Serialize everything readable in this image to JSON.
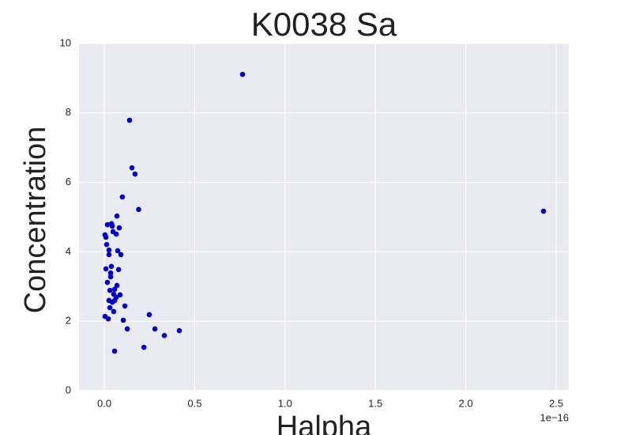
{
  "chart_data": {
    "type": "scatter",
    "title": "K0038 Sa",
    "xlabel": "Halpha",
    "ylabel": "Concentration",
    "x_offset_label": "1e−16",
    "color": "#0000cc",
    "background": "#eaeaf2",
    "grid": true,
    "xlim": [
      -0.14,
      2.57
    ],
    "ylim": [
      0,
      10
    ],
    "xticks": [
      {
        "value": 0,
        "label": "0.0"
      },
      {
        "value": 0.5,
        "label": "0.5"
      },
      {
        "value": 1,
        "label": "1.0"
      },
      {
        "value": 1.5,
        "label": "1.5"
      },
      {
        "value": 2,
        "label": "2.0"
      },
      {
        "value": 2.5,
        "label": "2.5"
      }
    ],
    "yticks": [
      0,
      2,
      4,
      6,
      8,
      10
    ],
    "x": [
      0.765,
      0.14,
      0.153,
      0.17,
      0.1,
      0.19,
      2.43,
      0.07,
      0.017,
      0.04,
      0.044,
      0.083,
      0.048,
      0.004,
      0.066,
      0.009,
      0.013,
      0.026,
      0.074,
      0.026,
      0.092,
      0.039,
      0.009,
      0.079,
      0.035,
      0.035,
      0.017,
      0.07,
      0.031,
      0.057,
      0.052,
      0.087,
      0.066,
      0.026,
      0.057,
      0.044,
      0.114,
      0.031,
      0.052,
      0.249,
      0.004,
      0.022,
      0.105,
      0.127,
      0.28,
      0.415,
      0.332,
      0.219,
      0.057
    ],
    "values": [
      9.11,
      7.79,
      6.42,
      6.24,
      5.58,
      5.22,
      5.17,
      5.03,
      4.78,
      4.81,
      4.74,
      4.69,
      4.58,
      4.49,
      4.51,
      4.42,
      4.21,
      4.05,
      4.03,
      3.92,
      3.92,
      3.58,
      3.51,
      3.49,
      3.39,
      3.28,
      3.12,
      3.03,
      2.89,
      2.92,
      2.78,
      2.76,
      2.69,
      2.6,
      2.6,
      2.55,
      2.44,
      2.39,
      2.28,
      2.19,
      2.14,
      2.07,
      2.03,
      1.78,
      1.78,
      1.73,
      1.59,
      1.25,
      1.14
    ]
  }
}
